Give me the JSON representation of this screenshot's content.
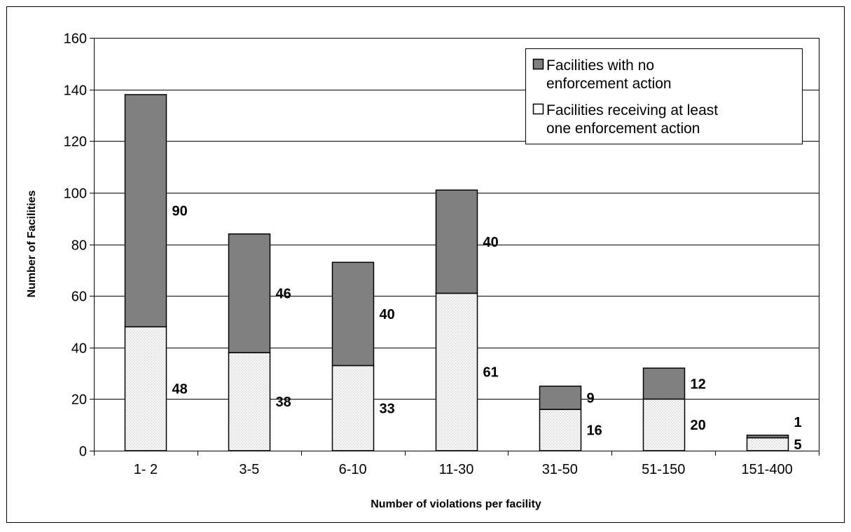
{
  "chart_data": {
    "type": "bar",
    "stacked": true,
    "title": "",
    "xlabel": "Number of violations per facility",
    "ylabel": "Number of Facilities",
    "ylim": [
      0,
      160
    ],
    "yticks": [
      0,
      20,
      40,
      60,
      80,
      100,
      120,
      140,
      160
    ],
    "grid": true,
    "legend_position": "top-right",
    "categories": [
      "1- 2",
      "3-5",
      "6-10",
      "11-30",
      "31-50",
      "51-150",
      "151-400"
    ],
    "series": [
      {
        "name": "Facilities receiving at least one enforcement action",
        "values": [
          48,
          38,
          33,
          61,
          16,
          20,
          5
        ],
        "color": "#f0f0f0"
      },
      {
        "name": "Facilities with no enforcement action",
        "values": [
          90,
          46,
          40,
          40,
          9,
          12,
          1
        ],
        "color": "#808080"
      }
    ],
    "legend_order": [
      1,
      0
    ]
  }
}
